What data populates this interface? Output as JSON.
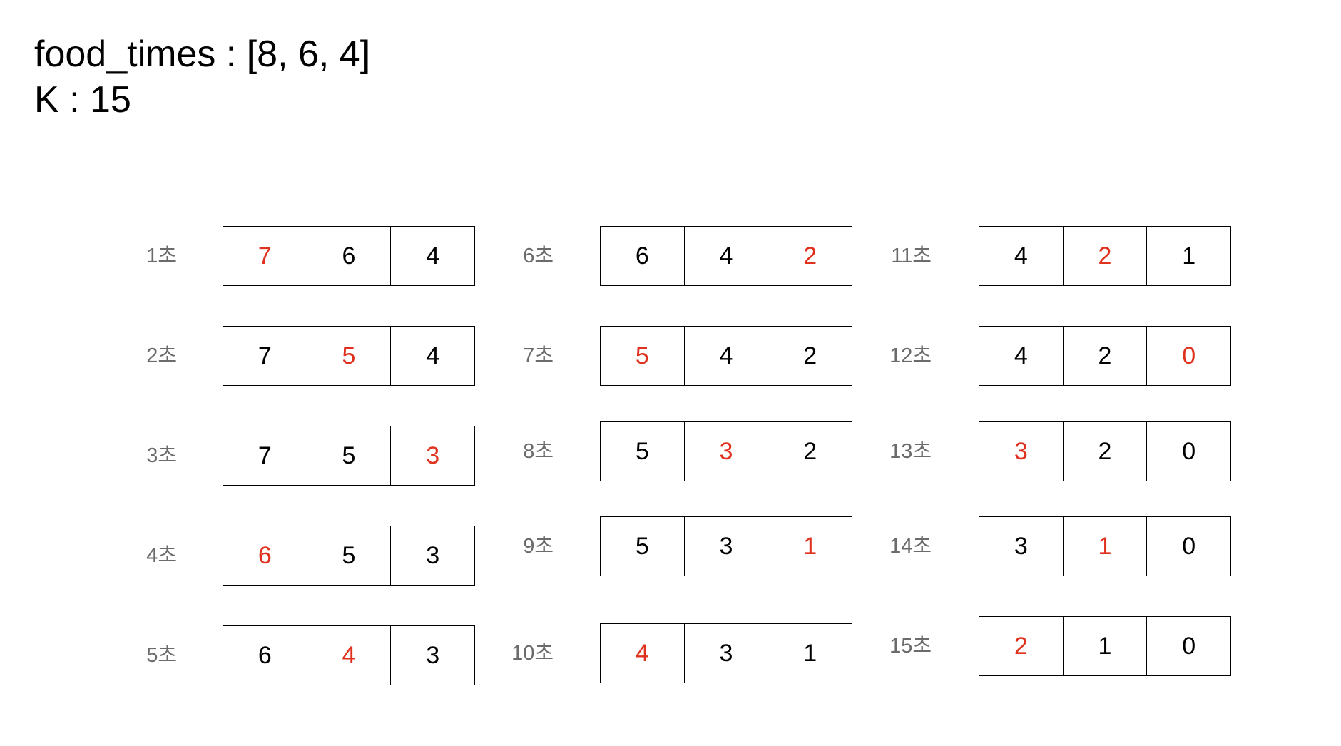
{
  "header": {
    "line1": "food_times : [8, 6, 4]",
    "line2": "K : 15"
  },
  "colors": {
    "text": "#000000",
    "label": "#6b6b6b",
    "highlight": "#e0301e"
  },
  "steps": [
    {
      "label": "1초",
      "values": [
        "7",
        "6",
        "4"
      ],
      "highlight_index": 0
    },
    {
      "label": "2초",
      "values": [
        "7",
        "5",
        "4"
      ],
      "highlight_index": 1
    },
    {
      "label": "3초",
      "values": [
        "7",
        "5",
        "3"
      ],
      "highlight_index": 2
    },
    {
      "label": "4초",
      "values": [
        "6",
        "5",
        "3"
      ],
      "highlight_index": 0
    },
    {
      "label": "5초",
      "values": [
        "6",
        "4",
        "3"
      ],
      "highlight_index": 1
    },
    {
      "label": "6초",
      "values": [
        "6",
        "4",
        "2"
      ],
      "highlight_index": 2
    },
    {
      "label": "7초",
      "values": [
        "5",
        "4",
        "2"
      ],
      "highlight_index": 0
    },
    {
      "label": "8초",
      "values": [
        "5",
        "3",
        "2"
      ],
      "highlight_index": 1
    },
    {
      "label": "9초",
      "values": [
        "5",
        "3",
        "1"
      ],
      "highlight_index": 2
    },
    {
      "label": "10초",
      "values": [
        "4",
        "3",
        "1"
      ],
      "highlight_index": 0
    },
    {
      "label": "11초",
      "values": [
        "4",
        "2",
        "1"
      ],
      "highlight_index": 1
    },
    {
      "label": "12초",
      "values": [
        "4",
        "2",
        "0"
      ],
      "highlight_index": 2
    },
    {
      "label": "13초",
      "values": [
        "3",
        "2",
        "0"
      ],
      "highlight_index": 0
    },
    {
      "label": "14초",
      "values": [
        "3",
        "1",
        "0"
      ],
      "highlight_index": 1
    },
    {
      "label": "15초",
      "values": [
        "2",
        "1",
        "0"
      ],
      "highlight_index": 0
    }
  ]
}
